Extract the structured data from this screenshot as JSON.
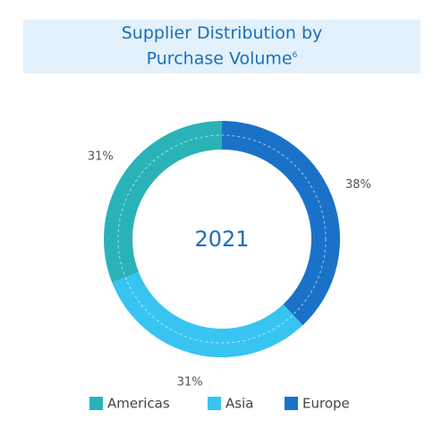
{
  "chart_data": {
    "type": "donut",
    "title": "Supplier Distribution by Purchase Volume",
    "title_note": "6",
    "center_label": "2021",
    "categories": [
      "Americas",
      "Asia",
      "Europe"
    ],
    "values": [
      31,
      31,
      38
    ],
    "value_labels": [
      "31%",
      "31%",
      "38%"
    ],
    "colors": [
      "#2ab3b6",
      "#38c4f0",
      "#1a72c8"
    ]
  }
}
